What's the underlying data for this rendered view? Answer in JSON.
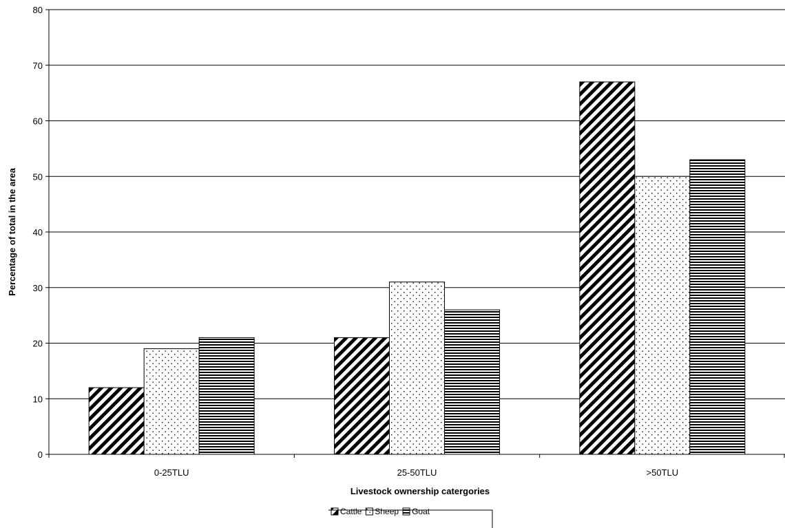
{
  "chart_data": {
    "type": "bar",
    "title": "",
    "xlabel": "Livestock ownership catergories",
    "ylabel": "Percentage of total in the area",
    "categories": [
      "0-25TLU",
      "25-50TLU",
      ">50TLU"
    ],
    "series": [
      {
        "name": "Cattle",
        "values": [
          12,
          21,
          67
        ],
        "pattern": "diagonal-hatch"
      },
      {
        "name": "Sheep",
        "values": [
          19,
          31,
          50
        ],
        "pattern": "dots"
      },
      {
        "name": "Goat",
        "values": [
          21,
          26,
          53
        ],
        "pattern": "horizontal-lines"
      }
    ],
    "ylim": [
      0,
      80
    ],
    "yticks": [
      0,
      10,
      20,
      30,
      40,
      50,
      60,
      70,
      80
    ],
    "grid": true,
    "legend_position": "bottom",
    "colors": {
      "bar_fill": "#ffffff",
      "pattern": "#000000",
      "grid": "#000000"
    }
  }
}
